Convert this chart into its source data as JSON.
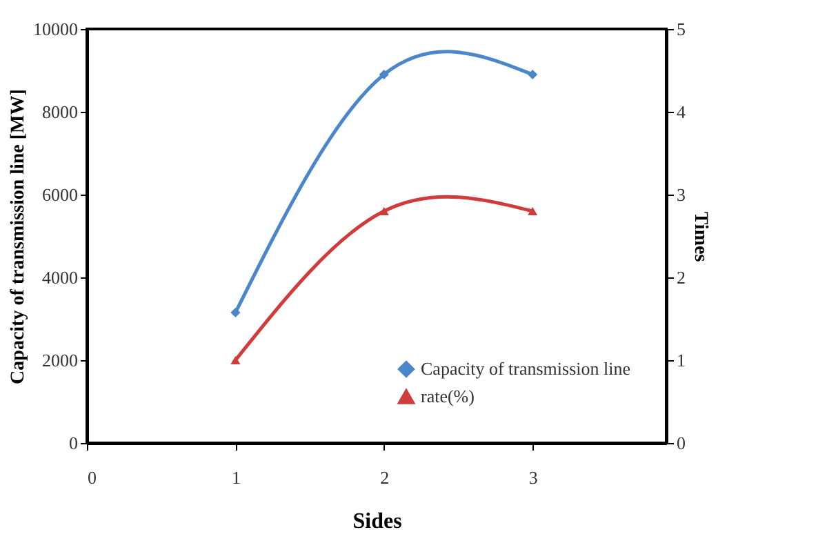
{
  "chart_data": {
    "type": "line",
    "xlabel": "Sides",
    "ylabel": "Capacity of transmission line [MW]",
    "y2label": "Times",
    "x": [
      1,
      2,
      3
    ],
    "xlim": [
      0,
      3.9
    ],
    "xticks": [
      0,
      1,
      2,
      3
    ],
    "ylim": [
      0,
      10000
    ],
    "yticks": [
      0,
      2000,
      4000,
      6000,
      8000,
      10000
    ],
    "y2lim": [
      0,
      5
    ],
    "y2ticks": [
      0,
      1,
      2,
      3,
      4,
      5
    ],
    "grid": false,
    "legend": "bottom right",
    "line_style": "solid",
    "series": [
      {
        "name": "Capacity of transmission line",
        "color": "#4a86c8",
        "marker": "diamond",
        "values": [
          3150,
          8900,
          8900
        ]
      },
      {
        "name": "rate(%)",
        "color": "#d03c3c",
        "marker": "triangle",
        "axis": "y2",
        "values": [
          1.0,
          2.8,
          2.8
        ]
      }
    ]
  }
}
